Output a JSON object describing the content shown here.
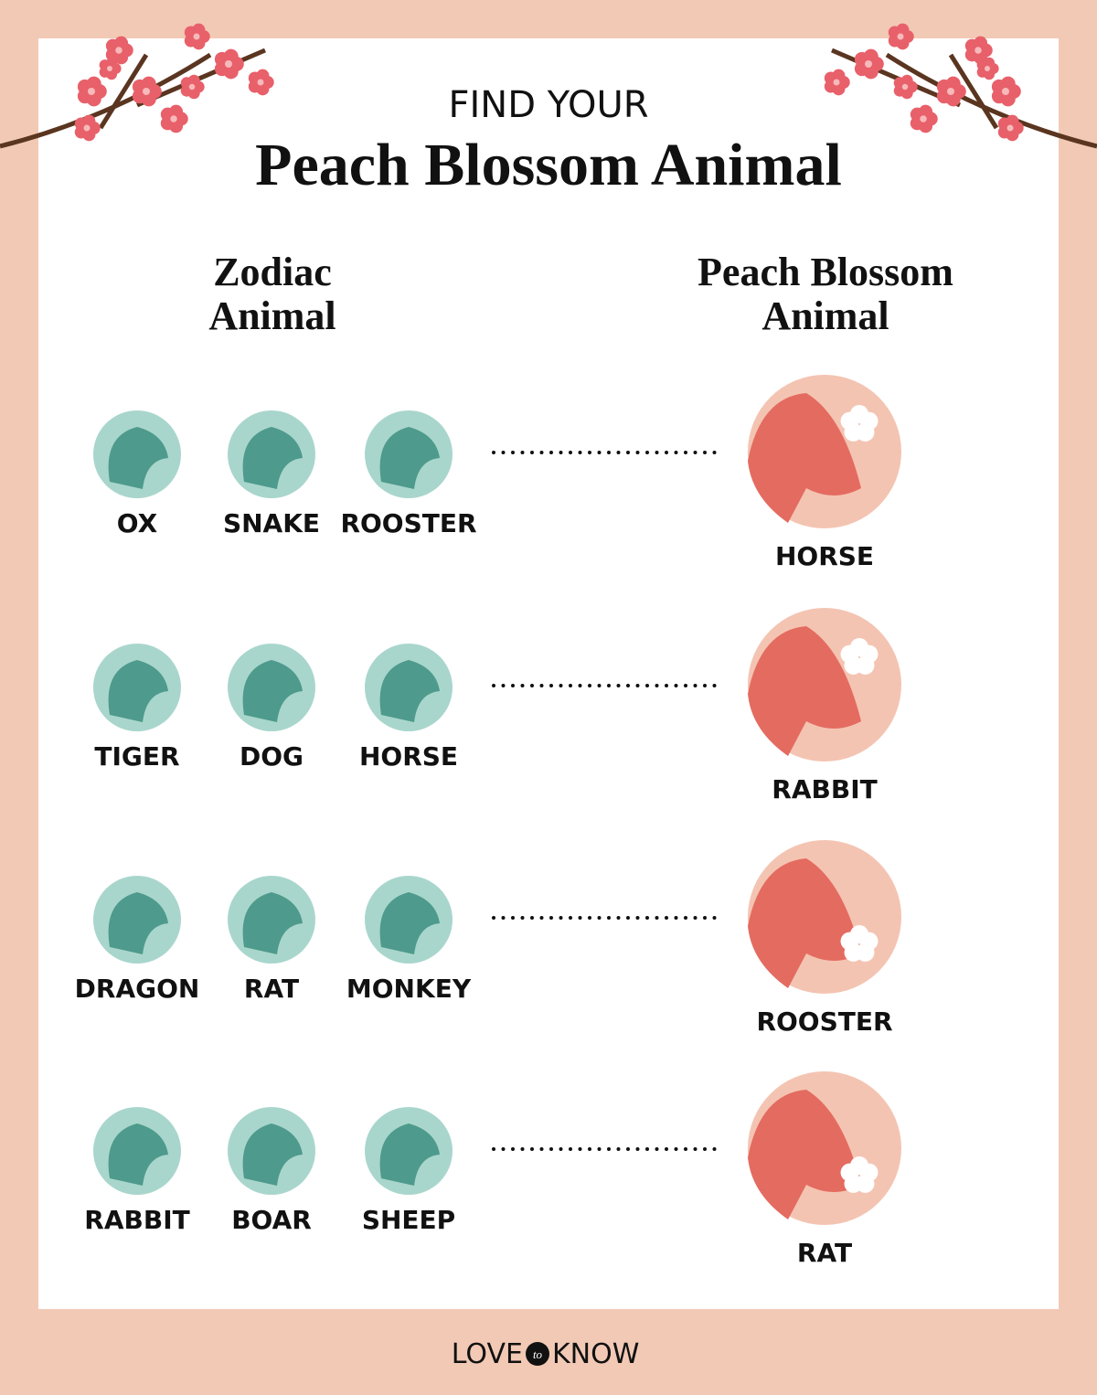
{
  "header": {
    "kicker": "FIND YOUR",
    "title": "Peach Blossom Animal"
  },
  "columns": {
    "zodiac": [
      "Zodiac",
      "Animal"
    ],
    "peach": [
      "Peach Blossom",
      "Animal"
    ]
  },
  "rows": [
    {
      "zodiac": [
        "OX",
        "SNAKE",
        "ROOSTER"
      ],
      "peach": "HORSE"
    },
    {
      "zodiac": [
        "TIGER",
        "DOG",
        "HORSE"
      ],
      "peach": "RABBIT"
    },
    {
      "zodiac": [
        "DRAGON",
        "RAT",
        "MONKEY"
      ],
      "peach": "ROOSTER"
    },
    {
      "zodiac": [
        "RABBIT",
        "BOAR",
        "SHEEP"
      ],
      "peach": "RAT"
    }
  ],
  "footer": {
    "brand": [
      "LOVE",
      "to",
      "KNOW"
    ]
  }
}
